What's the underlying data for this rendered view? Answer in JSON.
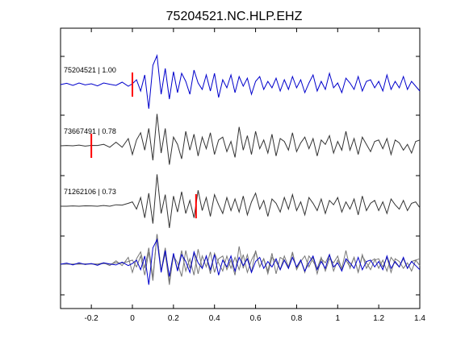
{
  "chart_data": {
    "type": "line",
    "title": "75204521.NC.HLP.EHZ",
    "xlabel": "",
    "ylabel": "",
    "xlim": [
      -0.35,
      1.4
    ],
    "xticks": [
      -0.2,
      0,
      0.2,
      0.4,
      0.6,
      0.8,
      1.0,
      1.2,
      1.4
    ],
    "xtick_labels": [
      "-0.2",
      "0",
      "0.2",
      "0.4",
      "0.6",
      "0.8",
      "1",
      "1.2",
      "1.4"
    ],
    "grid": false,
    "colors": {
      "master": "#0000cc",
      "other": "#333333",
      "other_overlay": "#777777",
      "pick": "#ff0000"
    },
    "series": [
      {
        "label": "75204521 | 1.00",
        "row": "top",
        "color": "#0000cc",
        "pick_time": 0.0,
        "x": [
          -0.35,
          -0.32,
          -0.29,
          -0.26,
          -0.23,
          -0.2,
          -0.17,
          -0.14,
          -0.11,
          -0.08,
          -0.05,
          -0.02,
          0.0,
          0.02,
          0.04,
          0.06,
          0.08,
          0.1,
          0.12,
          0.14,
          0.16,
          0.18,
          0.2,
          0.22,
          0.24,
          0.26,
          0.28,
          0.3,
          0.32,
          0.34,
          0.36,
          0.38,
          0.4,
          0.42,
          0.44,
          0.46,
          0.48,
          0.5,
          0.52,
          0.54,
          0.56,
          0.58,
          0.6,
          0.62,
          0.64,
          0.66,
          0.68,
          0.7,
          0.72,
          0.74,
          0.76,
          0.78,
          0.8,
          0.82,
          0.84,
          0.86,
          0.88,
          0.9,
          0.92,
          0.94,
          0.96,
          0.98,
          1.0,
          1.02,
          1.04,
          1.06,
          1.08,
          1.1,
          1.12,
          1.14,
          1.16,
          1.18,
          1.2,
          1.22,
          1.24,
          1.26,
          1.28,
          1.3,
          1.32,
          1.34,
          1.36,
          1.38,
          1.4
        ],
        "y": [
          0.0,
          0.08,
          -0.05,
          0.1,
          -0.02,
          0.05,
          -0.08,
          0.1,
          0.02,
          -0.05,
          0.15,
          -0.1,
          0.05,
          0.3,
          -0.4,
          0.6,
          -1.5,
          1.2,
          1.8,
          -0.6,
          1.0,
          -0.9,
          0.8,
          -0.5,
          0.7,
          0.2,
          -0.6,
          0.9,
          0.1,
          -0.3,
          0.6,
          -0.4,
          0.7,
          -0.8,
          0.3,
          -0.2,
          0.6,
          -0.5,
          0.5,
          -0.1,
          0.4,
          -0.6,
          0.2,
          0.5,
          -0.3,
          0.2,
          -0.2,
          0.4,
          -0.4,
          0.3,
          -0.3,
          0.5,
          -0.2,
          0.3,
          -0.5,
          0.1,
          0.6,
          -0.4,
          0.2,
          -0.3,
          0.7,
          -0.2,
          0.1,
          -0.5,
          0.4,
          0.1,
          -0.3,
          0.5,
          -0.4,
          0.2,
          0.3,
          -0.2,
          0.2,
          -0.4,
          0.6,
          -0.3,
          0.2,
          -0.2,
          0.5,
          -0.3,
          0.2,
          -0.1,
          -0.4
        ]
      },
      {
        "label": "73667491 | 0.78",
        "row": "middle",
        "color": "#333333",
        "pick_time": -0.2,
        "x": [
          -0.35,
          -0.32,
          -0.29,
          -0.26,
          -0.23,
          -0.2,
          -0.17,
          -0.14,
          -0.11,
          -0.08,
          -0.05,
          -0.02,
          0.0,
          0.02,
          0.04,
          0.06,
          0.08,
          0.1,
          0.12,
          0.14,
          0.16,
          0.18,
          0.2,
          0.22,
          0.24,
          0.26,
          0.28,
          0.3,
          0.32,
          0.34,
          0.36,
          0.38,
          0.4,
          0.42,
          0.44,
          0.46,
          0.48,
          0.5,
          0.52,
          0.54,
          0.56,
          0.58,
          0.6,
          0.62,
          0.64,
          0.66,
          0.68,
          0.7,
          0.72,
          0.74,
          0.76,
          0.78,
          0.8,
          0.82,
          0.84,
          0.86,
          0.88,
          0.9,
          0.92,
          0.94,
          0.96,
          0.98,
          1.0,
          1.02,
          1.04,
          1.06,
          1.08,
          1.1,
          1.12,
          1.14,
          1.16,
          1.18,
          1.2,
          1.22,
          1.24,
          1.26,
          1.28,
          1.3,
          1.32,
          1.34,
          1.36,
          1.38,
          1.4
        ],
        "y": [
          0.0,
          0.02,
          0.0,
          0.05,
          -0.02,
          0.03,
          0.02,
          0.1,
          -0.1,
          0.25,
          -0.1,
          0.5,
          -0.6,
          0.4,
          0.9,
          -0.3,
          1.2,
          -1.0,
          2.2,
          -0.5,
          1.2,
          -1.3,
          0.6,
          0.1,
          -0.9,
          1.0,
          -0.3,
          0.8,
          -0.7,
          0.6,
          -0.2,
          0.9,
          -0.6,
          0.4,
          0.6,
          -0.4,
          0.3,
          -0.8,
          1.3,
          -0.3,
          0.7,
          -0.6,
          1.0,
          -0.2,
          0.4,
          -0.5,
          0.8,
          -0.7,
          0.5,
          0.3,
          -0.3,
          0.9,
          -0.4,
          0.2,
          0.6,
          -0.2,
          0.5,
          -0.7,
          0.4,
          0.1,
          0.7,
          -0.5,
          0.3,
          -0.3,
          1.0,
          -0.3,
          0.5,
          -0.6,
          0.6,
          0.1,
          -0.4,
          0.3,
          0.4,
          -0.2,
          0.5,
          -0.6,
          0.4,
          0.2,
          -0.3,
          0.1,
          -0.5,
          0.3,
          0.4
        ]
      },
      {
        "label": "71262106 | 0.73",
        "row": "lower",
        "color": "#333333",
        "pick_time": 0.31,
        "x": [
          -0.35,
          -0.32,
          -0.29,
          -0.26,
          -0.23,
          -0.2,
          -0.17,
          -0.14,
          -0.11,
          -0.08,
          -0.05,
          -0.02,
          0.0,
          0.02,
          0.04,
          0.06,
          0.08,
          0.1,
          0.12,
          0.14,
          0.16,
          0.18,
          0.2,
          0.22,
          0.24,
          0.26,
          0.28,
          0.3,
          0.32,
          0.34,
          0.36,
          0.38,
          0.4,
          0.42,
          0.44,
          0.46,
          0.48,
          0.5,
          0.52,
          0.54,
          0.56,
          0.58,
          0.6,
          0.62,
          0.64,
          0.66,
          0.68,
          0.7,
          0.72,
          0.74,
          0.76,
          0.78,
          0.8,
          0.82,
          0.84,
          0.86,
          0.88,
          0.9,
          0.92,
          0.94,
          0.96,
          0.98,
          1.0,
          1.02,
          1.04,
          1.06,
          1.08,
          1.1,
          1.12,
          1.14,
          1.16,
          1.18,
          1.2,
          1.22,
          1.24,
          1.26,
          1.28,
          1.3,
          1.32,
          1.34,
          1.36,
          1.38,
          1.4
        ],
        "y": [
          0.0,
          0.0,
          0.02,
          0.0,
          0.03,
          0.02,
          0.0,
          0.05,
          0.0,
          0.1,
          0.08,
          0.2,
          0.3,
          -0.2,
          0.6,
          -0.8,
          0.9,
          -1.2,
          2.2,
          -0.5,
          0.8,
          -1.5,
          0.7,
          -0.4,
          1.0,
          -0.5,
          0.4,
          -0.8,
          1.1,
          -0.3,
          0.6,
          -0.7,
          0.8,
          0.1,
          -0.5,
          0.6,
          -0.3,
          0.5,
          -0.4,
          0.7,
          -0.6,
          0.3,
          0.9,
          -0.2,
          0.4,
          -0.7,
          0.5,
          0.2,
          -0.4,
          0.6,
          -0.2,
          0.8,
          -0.3,
          0.3,
          -0.6,
          0.6,
          0.2,
          -0.3,
          0.5,
          -0.5,
          0.4,
          0.1,
          0.6,
          -0.4,
          0.3,
          -0.2,
          0.5,
          -0.6,
          0.7,
          -0.3,
          0.2,
          0.4,
          -0.3,
          0.3,
          -0.5,
          0.5,
          0.1,
          -0.2,
          0.4,
          -0.3,
          0.2,
          0.3,
          -0.1
        ]
      }
    ]
  }
}
